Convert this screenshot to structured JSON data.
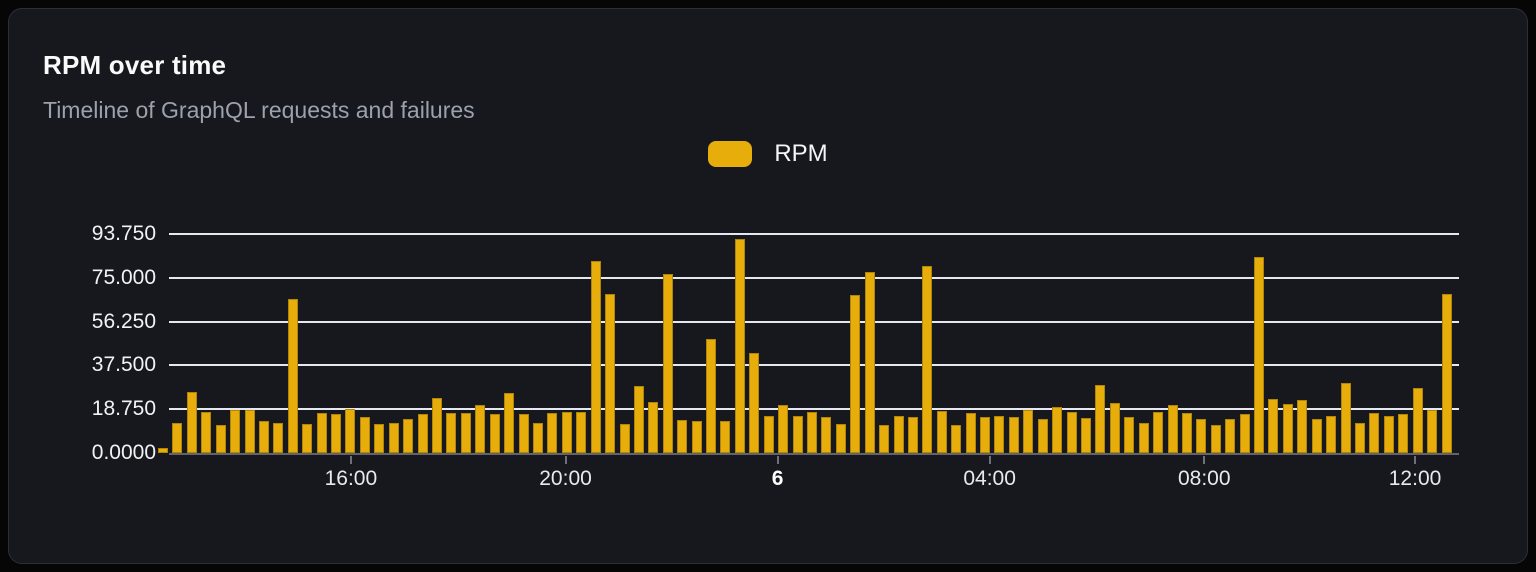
{
  "card": {
    "title": "RPM over time",
    "subtitle": "Timeline of GraphQL requests and failures"
  },
  "legend": {
    "label": "RPM",
    "swatch_color": "#e7ae0b"
  },
  "colors": {
    "bar": "#e7ae0b",
    "card_background": "#16181d",
    "gridline": "#e5e8f0",
    "axis": "#63646a"
  },
  "chart_data": {
    "type": "bar",
    "title": "RPM over time",
    "subtitle": "Timeline of GraphQL requests and failures",
    "series_name": "RPM",
    "xlabel": "",
    "ylabel": "",
    "ylim": [
      0,
      93.75
    ],
    "grid": true,
    "legend_position": "top-center",
    "y_ticks": [
      0,
      18.75,
      37.5,
      56.25,
      75,
      93.75
    ],
    "y_tick_labels": [
      "0.0000",
      "18.750",
      "37.500",
      "56.250",
      "75.000",
      "93.750"
    ],
    "x_ticks": [
      {
        "label": "16:00",
        "pos_pct": 14.3,
        "bold": false
      },
      {
        "label": "20:00",
        "pos_pct": 30.9,
        "bold": false
      },
      {
        "label": "6",
        "pos_pct": 47.3,
        "bold": true
      },
      {
        "label": "04:00",
        "pos_pct": 63.7,
        "bold": false
      },
      {
        "label": "08:00",
        "pos_pct": 80.3,
        "bold": false
      },
      {
        "label": "12:00",
        "pos_pct": 96.6,
        "bold": false
      }
    ],
    "values": [
      2,
      13,
      26,
      17.5,
      12,
      18.5,
      18.5,
      13.5,
      13,
      66,
      12.5,
      17,
      16.5,
      19,
      15.5,
      12.5,
      13,
      14.5,
      16.5,
      23.5,
      17,
      17,
      20.5,
      16.5,
      25.5,
      16.5,
      13,
      17,
      17.5,
      17.5,
      82,
      68,
      12.5,
      28.5,
      22,
      76.5,
      14,
      13.5,
      49,
      13.5,
      91.5,
      43,
      16,
      20.5,
      16,
      17.5,
      15.5,
      12.5,
      67.5,
      77.5,
      12,
      16,
      15.5,
      80,
      18,
      12,
      17,
      15.5,
      16,
      15.5,
      18.5,
      14.5,
      19.5,
      17.5,
      15,
      29,
      21.5,
      15.5,
      13,
      17.5,
      20.5,
      17,
      14.5,
      12,
      14.5,
      16.5,
      84,
      23,
      21,
      22.5,
      14.5,
      16,
      30,
      13,
      17,
      16,
      16.5,
      28,
      18.5,
      68
    ]
  }
}
